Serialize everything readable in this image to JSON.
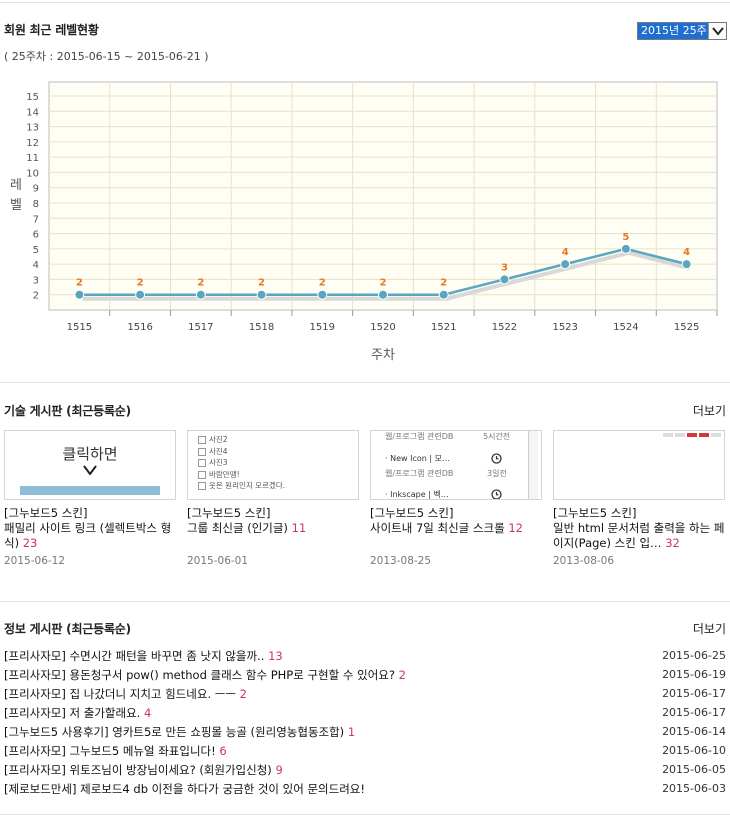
{
  "level": {
    "title": "회원 최근 레벨현황",
    "period": "( 25주차 : 2015-06-15 ~ 2015-06-21 )",
    "select_value": "2015년 25주",
    "ylabel_1": "레",
    "ylabel_2": "벨",
    "xlabel": "주차"
  },
  "chart_data": {
    "type": "line",
    "categories": [
      "1515",
      "1516",
      "1517",
      "1518",
      "1519",
      "1520",
      "1521",
      "1522",
      "1523",
      "1524",
      "1525"
    ],
    "values": [
      2,
      2,
      2,
      2,
      2,
      2,
      2,
      3,
      4,
      5,
      4
    ],
    "ylim": [
      1,
      15
    ],
    "yticks": [
      2,
      3,
      4,
      5,
      6,
      7,
      8,
      9,
      10,
      11,
      12,
      13,
      14,
      15
    ],
    "xlabel": "주차",
    "ylabel": "레벨",
    "grid": true,
    "line_color": "#5aa6bf",
    "label_color": "#e8761f"
  },
  "tech": {
    "title": "기술 게시판 (최근등록순)",
    "more": "더보기",
    "cards": [
      {
        "prefix": "[그누보드5 스킨]",
        "title": "패밀리 사이트 링크 (셀렉트박스 형식)",
        "count": "23",
        "date": "2015-06-12",
        "thumb_text": "클릭하면"
      },
      {
        "prefix": "[그누보드5 스킨]",
        "title": "그룹 최신글 (인기글)",
        "count": "11",
        "date": "2015-06-01",
        "thumb_items": [
          "사진2",
          "사진4",
          "사진3",
          "바람만땡!",
          "웃은 원리인지 모르겠다."
        ]
      },
      {
        "prefix": "[그누보드5 스킨]",
        "title": "사이트내 7일 최신글 스크롤",
        "count": "12",
        "date": "2013-08-25",
        "thumb_rows": [
          "웹/프로그램 관련DB",
          "5시간전",
          "· New Icon | 모…",
          "웹/프로그램 관련DB",
          "3일전",
          "· Inkscape | 벡…"
        ]
      },
      {
        "prefix": "[그누보드5 스킨]",
        "title": "일반 html 문서처럼 출력을 하는 페이지(Page) 스킨 입…",
        "count": "32",
        "date": "2013-08-06"
      }
    ]
  },
  "info": {
    "title": "정보 게시판 (최근등록순)",
    "more": "더보기",
    "posts": [
      {
        "text": "[프리사자모] 수면시간 패턴을 바꾸면 좀 낫지 않을까..",
        "count": "13",
        "date": "2015-06-25"
      },
      {
        "text": "[프리사자모] 용돈청구서 pow() method 클래스 함수 PHP로 구현할 수 있어요?",
        "count": "2",
        "date": "2015-06-19"
      },
      {
        "text": "[프리사자모] 집 나갔더니 지치고 힘드네요. ㅡㅡ",
        "count": "2",
        "date": "2015-06-17"
      },
      {
        "text": "[프리사자모] 저 출가할래요.",
        "count": "4",
        "date": "2015-06-17"
      },
      {
        "text": "[그누보드5 사용후기] 영카트5로 만든 쇼핑몰 능골 (원리영농협동조합)",
        "count": "1",
        "date": "2015-06-14"
      },
      {
        "text": "[프리사자모] 그누보드5 메뉴얼 좌표입니다!",
        "count": "6",
        "date": "2015-06-10"
      },
      {
        "text": "[프리사자모] 위토즈님이 방장님이세요? (회원가입신청)",
        "count": "9",
        "date": "2015-06-05"
      },
      {
        "text": "[제로보드만세] 제로보드4 db 이전을 하다가 궁금한 것이 있어 문의드려요!",
        "count": "",
        "date": "2015-06-03"
      }
    ]
  }
}
